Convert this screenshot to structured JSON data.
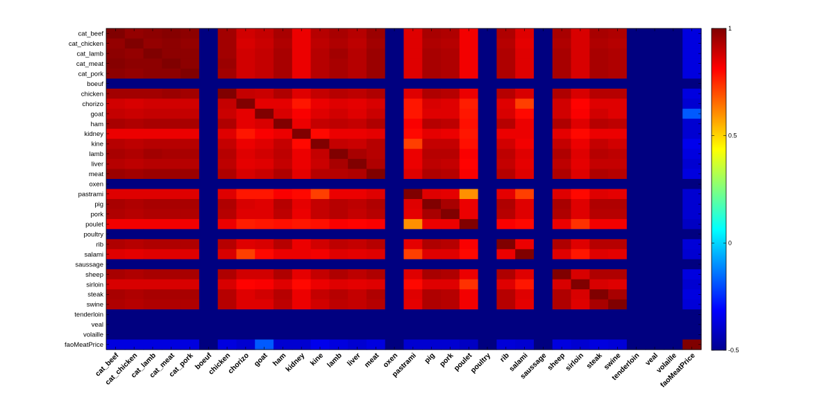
{
  "chart_data": {
    "type": "heatmap",
    "title": "",
    "xlabel": "",
    "ylabel": "",
    "labels": [
      "cat_beef",
      "cat_chicken",
      "cat_lamb",
      "cat_meat",
      "cat_pork",
      "boeuf",
      "chicken",
      "chorizo",
      "goat",
      "ham",
      "kidney",
      "kine",
      "lamb",
      "liver",
      "meat",
      "oxen",
      "pastrami",
      "pig",
      "pork",
      "poulet",
      "poultry",
      "rib",
      "salami",
      "saussage",
      "sheep",
      "sirloin",
      "steak",
      "swine",
      "tenderloin",
      "veal",
      "volaille",
      "faoMeatPrice"
    ],
    "empty_labels": [
      "boeuf",
      "oxen",
      "poultry",
      "saussage",
      "tenderloin",
      "veal",
      "volaille"
    ],
    "empty_value": -0.5,
    "colorbar": {
      "min": -0.5,
      "max": 1,
      "ticks": [
        1,
        0.5,
        0,
        -0.5
      ],
      "colormap": "jet"
    },
    "matrix": [
      [
        1.0,
        0.97,
        0.98,
        0.99,
        0.98,
        -0.5,
        0.95,
        0.88,
        0.9,
        0.94,
        0.84,
        0.92,
        0.94,
        0.92,
        0.96,
        -0.5,
        0.86,
        0.94,
        0.93,
        0.83,
        -0.5,
        0.93,
        0.86,
        -0.5,
        0.94,
        0.87,
        0.94,
        0.93,
        -0.5,
        -0.5,
        -0.5,
        -0.36
      ],
      [
        0.97,
        1.0,
        0.97,
        0.98,
        0.97,
        -0.5,
        0.95,
        0.87,
        0.89,
        0.93,
        0.84,
        0.91,
        0.93,
        0.91,
        0.95,
        -0.5,
        0.86,
        0.93,
        0.92,
        0.83,
        -0.5,
        0.92,
        0.85,
        -0.5,
        0.93,
        0.87,
        0.93,
        0.92,
        -0.5,
        -0.5,
        -0.5,
        -0.36
      ],
      [
        0.98,
        0.97,
        1.0,
        0.98,
        0.98,
        -0.5,
        0.95,
        0.88,
        0.9,
        0.94,
        0.84,
        0.92,
        0.95,
        0.92,
        0.96,
        -0.5,
        0.86,
        0.94,
        0.93,
        0.83,
        -0.5,
        0.93,
        0.86,
        -0.5,
        0.94,
        0.87,
        0.94,
        0.93,
        -0.5,
        -0.5,
        -0.5,
        -0.36
      ],
      [
        0.99,
        0.98,
        0.98,
        1.0,
        0.98,
        -0.5,
        0.96,
        0.88,
        0.9,
        0.94,
        0.84,
        0.92,
        0.94,
        0.92,
        0.96,
        -0.5,
        0.86,
        0.94,
        0.93,
        0.83,
        -0.5,
        0.93,
        0.86,
        -0.5,
        0.94,
        0.87,
        0.94,
        0.93,
        -0.5,
        -0.5,
        -0.5,
        -0.36
      ],
      [
        0.98,
        0.97,
        0.98,
        0.98,
        1.0,
        -0.5,
        0.95,
        0.88,
        0.9,
        0.94,
        0.84,
        0.92,
        0.94,
        0.92,
        0.96,
        -0.5,
        0.86,
        0.94,
        0.93,
        0.83,
        -0.5,
        0.93,
        0.86,
        -0.5,
        0.94,
        0.87,
        0.94,
        0.93,
        -0.5,
        -0.5,
        -0.5,
        -0.36
      ],
      [
        -0.5,
        -0.5,
        -0.5,
        -0.5,
        -0.5,
        -0.5,
        -0.5,
        -0.5,
        -0.5,
        -0.5,
        -0.5,
        -0.5,
        -0.5,
        -0.5,
        -0.5,
        -0.5,
        -0.5,
        -0.5,
        -0.5,
        -0.5,
        -0.5,
        -0.5,
        -0.5,
        -0.5,
        -0.5,
        -0.5,
        -0.5,
        -0.5,
        -0.5,
        -0.5,
        -0.5,
        -0.5
      ],
      [
        0.95,
        0.95,
        0.95,
        0.96,
        0.95,
        -0.5,
        1.0,
        0.9,
        0.89,
        0.93,
        0.86,
        0.9,
        0.92,
        0.91,
        0.93,
        -0.5,
        0.86,
        0.93,
        0.92,
        0.84,
        -0.5,
        0.92,
        0.87,
        -0.5,
        0.93,
        0.87,
        0.92,
        0.92,
        -0.5,
        -0.5,
        -0.5,
        -0.36
      ],
      [
        0.88,
        0.87,
        0.88,
        0.88,
        0.88,
        -0.5,
        0.9,
        1.0,
        0.85,
        0.85,
        0.78,
        0.84,
        0.86,
        0.85,
        0.87,
        -0.5,
        0.78,
        0.87,
        0.86,
        0.77,
        -0.5,
        0.86,
        0.72,
        -0.5,
        0.88,
        0.81,
        0.86,
        0.86,
        -0.5,
        -0.5,
        -0.5,
        -0.38
      ],
      [
        0.9,
        0.89,
        0.9,
        0.9,
        0.9,
        -0.5,
        0.89,
        0.85,
        1.0,
        0.87,
        0.82,
        0.86,
        0.88,
        0.86,
        0.89,
        -0.5,
        0.78,
        0.86,
        0.86,
        0.78,
        -0.5,
        0.87,
        0.8,
        -0.5,
        0.88,
        0.82,
        0.88,
        0.86,
        -0.5,
        -0.5,
        -0.5,
        -0.18
      ],
      [
        0.94,
        0.93,
        0.94,
        0.94,
        0.94,
        -0.5,
        0.93,
        0.85,
        0.87,
        1.0,
        0.84,
        0.9,
        0.91,
        0.9,
        0.93,
        -0.5,
        0.82,
        0.92,
        0.91,
        0.79,
        -0.5,
        0.92,
        0.84,
        -0.5,
        0.93,
        0.86,
        0.92,
        0.91,
        -0.5,
        -0.5,
        -0.5,
        -0.38
      ],
      [
        0.84,
        0.84,
        0.84,
        0.84,
        0.84,
        -0.5,
        0.86,
        0.78,
        0.82,
        0.84,
        1.0,
        0.8,
        0.84,
        0.84,
        0.85,
        -0.5,
        0.8,
        0.85,
        0.84,
        0.78,
        -0.5,
        0.84,
        0.84,
        -0.5,
        0.85,
        0.8,
        0.84,
        0.84,
        -0.5,
        -0.5,
        -0.5,
        -0.38
      ],
      [
        0.92,
        0.91,
        0.92,
        0.92,
        0.92,
        -0.5,
        0.9,
        0.84,
        0.86,
        0.9,
        0.8,
        1.0,
        0.9,
        0.89,
        0.92,
        -0.5,
        0.72,
        0.9,
        0.9,
        0.79,
        -0.5,
        0.88,
        0.83,
        -0.5,
        0.9,
        0.84,
        0.9,
        0.88,
        -0.5,
        -0.5,
        -0.5,
        -0.34
      ],
      [
        0.94,
        0.93,
        0.95,
        0.94,
        0.94,
        -0.5,
        0.92,
        0.86,
        0.88,
        0.91,
        0.84,
        0.9,
        1.0,
        0.94,
        0.92,
        -0.5,
        0.84,
        0.92,
        0.92,
        0.82,
        -0.5,
        0.91,
        0.86,
        -0.5,
        0.93,
        0.86,
        0.92,
        0.91,
        -0.5,
        -0.5,
        -0.5,
        -0.36
      ],
      [
        0.92,
        0.91,
        0.92,
        0.92,
        0.92,
        -0.5,
        0.91,
        0.85,
        0.86,
        0.9,
        0.84,
        0.89,
        0.94,
        1.0,
        0.93,
        -0.5,
        0.84,
        0.91,
        0.9,
        0.81,
        -0.5,
        0.9,
        0.85,
        -0.5,
        0.91,
        0.85,
        0.9,
        0.9,
        -0.5,
        -0.5,
        -0.5,
        -0.38
      ],
      [
        0.96,
        0.95,
        0.96,
        0.96,
        0.96,
        -0.5,
        0.93,
        0.87,
        0.89,
        0.93,
        0.85,
        0.92,
        0.92,
        0.93,
        1.0,
        -0.5,
        0.86,
        0.93,
        0.92,
        0.82,
        -0.5,
        0.92,
        0.86,
        -0.5,
        0.93,
        0.86,
        0.93,
        0.92,
        -0.5,
        -0.5,
        -0.5,
        -0.36
      ],
      [
        -0.5,
        -0.5,
        -0.5,
        -0.5,
        -0.5,
        -0.5,
        -0.5,
        -0.5,
        -0.5,
        -0.5,
        -0.5,
        -0.5,
        -0.5,
        -0.5,
        -0.5,
        -0.5,
        -0.5,
        -0.5,
        -0.5,
        -0.5,
        -0.5,
        -0.5,
        -0.5,
        -0.5,
        -0.5,
        -0.5,
        -0.5,
        -0.5,
        -0.5,
        -0.5,
        -0.5,
        -0.5
      ],
      [
        0.86,
        0.86,
        0.86,
        0.86,
        0.86,
        -0.5,
        0.86,
        0.78,
        0.78,
        0.82,
        0.8,
        0.72,
        0.84,
        0.84,
        0.86,
        -0.5,
        1.0,
        0.86,
        0.85,
        0.6,
        -0.5,
        0.85,
        0.72,
        -0.5,
        0.86,
        0.8,
        0.86,
        0.85,
        -0.5,
        -0.5,
        -0.5,
        -0.38
      ],
      [
        0.94,
        0.93,
        0.94,
        0.94,
        0.94,
        -0.5,
        0.93,
        0.87,
        0.86,
        0.92,
        0.85,
        0.9,
        0.92,
        0.91,
        0.93,
        -0.5,
        0.86,
        1.0,
        0.94,
        0.84,
        -0.5,
        0.93,
        0.86,
        -0.5,
        0.94,
        0.86,
        0.93,
        0.93,
        -0.5,
        -0.5,
        -0.5,
        -0.38
      ],
      [
        0.93,
        0.92,
        0.93,
        0.93,
        0.93,
        -0.5,
        0.92,
        0.86,
        0.86,
        0.91,
        0.84,
        0.9,
        0.92,
        0.9,
        0.92,
        -0.5,
        0.85,
        0.94,
        1.0,
        0.84,
        -0.5,
        0.92,
        0.86,
        -0.5,
        0.93,
        0.86,
        0.92,
        0.92,
        -0.5,
        -0.5,
        -0.5,
        -0.38
      ],
      [
        0.83,
        0.83,
        0.83,
        0.83,
        0.83,
        -0.5,
        0.84,
        0.77,
        0.78,
        0.79,
        0.78,
        0.79,
        0.82,
        0.81,
        0.82,
        -0.5,
        0.6,
        0.84,
        0.84,
        1.0,
        -0.5,
        0.82,
        0.8,
        -0.5,
        0.84,
        0.74,
        0.83,
        0.83,
        -0.5,
        -0.5,
        -0.5,
        -0.4
      ],
      [
        -0.5,
        -0.5,
        -0.5,
        -0.5,
        -0.5,
        -0.5,
        -0.5,
        -0.5,
        -0.5,
        -0.5,
        -0.5,
        -0.5,
        -0.5,
        -0.5,
        -0.5,
        -0.5,
        -0.5,
        -0.5,
        -0.5,
        -0.5,
        -0.5,
        -0.5,
        -0.5,
        -0.5,
        -0.5,
        -0.5,
        -0.5,
        -0.5,
        -0.5,
        -0.5,
        -0.5,
        -0.5
      ],
      [
        0.93,
        0.92,
        0.93,
        0.93,
        0.93,
        -0.5,
        0.92,
        0.86,
        0.87,
        0.92,
        0.84,
        0.88,
        0.91,
        0.9,
        0.92,
        -0.5,
        0.85,
        0.93,
        0.92,
        0.82,
        -0.5,
        1.0,
        0.84,
        -0.5,
        0.93,
        0.86,
        0.92,
        0.92,
        -0.5,
        -0.5,
        -0.5,
        -0.37
      ],
      [
        0.86,
        0.85,
        0.86,
        0.86,
        0.86,
        -0.5,
        0.87,
        0.72,
        0.8,
        0.84,
        0.84,
        0.83,
        0.86,
        0.85,
        0.86,
        -0.5,
        0.72,
        0.86,
        0.86,
        0.8,
        -0.5,
        0.84,
        1.0,
        -0.5,
        0.86,
        0.78,
        0.86,
        0.85,
        -0.5,
        -0.5,
        -0.5,
        -0.38
      ],
      [
        -0.5,
        -0.5,
        -0.5,
        -0.5,
        -0.5,
        -0.5,
        -0.5,
        -0.5,
        -0.5,
        -0.5,
        -0.5,
        -0.5,
        -0.5,
        -0.5,
        -0.5,
        -0.5,
        -0.5,
        -0.5,
        -0.5,
        -0.5,
        -0.5,
        -0.5,
        -0.5,
        -0.5,
        -0.5,
        -0.5,
        -0.5,
        -0.5,
        -0.5,
        -0.5,
        -0.5,
        -0.5
      ],
      [
        0.94,
        0.93,
        0.94,
        0.94,
        0.94,
        -0.5,
        0.93,
        0.88,
        0.88,
        0.93,
        0.85,
        0.9,
        0.93,
        0.91,
        0.93,
        -0.5,
        0.86,
        0.94,
        0.93,
        0.84,
        -0.5,
        0.93,
        0.86,
        -0.5,
        1.0,
        0.87,
        0.93,
        0.93,
        -0.5,
        -0.5,
        -0.5,
        -0.36
      ],
      [
        0.87,
        0.87,
        0.87,
        0.87,
        0.87,
        -0.5,
        0.87,
        0.81,
        0.82,
        0.86,
        0.8,
        0.84,
        0.86,
        0.85,
        0.86,
        -0.5,
        0.8,
        0.86,
        0.86,
        0.74,
        -0.5,
        0.86,
        0.78,
        -0.5,
        0.87,
        1.0,
        0.87,
        0.86,
        -0.5,
        -0.5,
        -0.5,
        -0.38
      ],
      [
        0.94,
        0.93,
        0.94,
        0.94,
        0.94,
        -0.5,
        0.92,
        0.86,
        0.88,
        0.92,
        0.84,
        0.9,
        0.92,
        0.9,
        0.93,
        -0.5,
        0.86,
        0.93,
        0.92,
        0.83,
        -0.5,
        0.92,
        0.86,
        -0.5,
        0.93,
        0.87,
        1.0,
        0.94,
        -0.5,
        -0.5,
        -0.5,
        -0.36
      ],
      [
        0.93,
        0.92,
        0.93,
        0.93,
        0.93,
        -0.5,
        0.92,
        0.86,
        0.86,
        0.91,
        0.84,
        0.88,
        0.91,
        0.9,
        0.92,
        -0.5,
        0.85,
        0.93,
        0.92,
        0.83,
        -0.5,
        0.92,
        0.85,
        -0.5,
        0.93,
        0.86,
        0.94,
        1.0,
        -0.5,
        -0.5,
        -0.5,
        -0.37
      ],
      [
        -0.5,
        -0.5,
        -0.5,
        -0.5,
        -0.5,
        -0.5,
        -0.5,
        -0.5,
        -0.5,
        -0.5,
        -0.5,
        -0.5,
        -0.5,
        -0.5,
        -0.5,
        -0.5,
        -0.5,
        -0.5,
        -0.5,
        -0.5,
        -0.5,
        -0.5,
        -0.5,
        -0.5,
        -0.5,
        -0.5,
        -0.5,
        -0.5,
        -0.5,
        -0.5,
        -0.5,
        -0.5
      ],
      [
        -0.5,
        -0.5,
        -0.5,
        -0.5,
        -0.5,
        -0.5,
        -0.5,
        -0.5,
        -0.5,
        -0.5,
        -0.5,
        -0.5,
        -0.5,
        -0.5,
        -0.5,
        -0.5,
        -0.5,
        -0.5,
        -0.5,
        -0.5,
        -0.5,
        -0.5,
        -0.5,
        -0.5,
        -0.5,
        -0.5,
        -0.5,
        -0.5,
        -0.5,
        -0.5,
        -0.5,
        -0.5
      ],
      [
        -0.5,
        -0.5,
        -0.5,
        -0.5,
        -0.5,
        -0.5,
        -0.5,
        -0.5,
        -0.5,
        -0.5,
        -0.5,
        -0.5,
        -0.5,
        -0.5,
        -0.5,
        -0.5,
        -0.5,
        -0.5,
        -0.5,
        -0.5,
        -0.5,
        -0.5,
        -0.5,
        -0.5,
        -0.5,
        -0.5,
        -0.5,
        -0.5,
        -0.5,
        -0.5,
        -0.5,
        -0.5
      ],
      [
        -0.36,
        -0.36,
        -0.36,
        -0.36,
        -0.36,
        -0.5,
        -0.36,
        -0.38,
        -0.18,
        -0.38,
        -0.38,
        -0.34,
        -0.36,
        -0.38,
        -0.36,
        -0.5,
        -0.38,
        -0.38,
        -0.38,
        -0.4,
        -0.5,
        -0.37,
        -0.38,
        -0.5,
        -0.36,
        -0.38,
        -0.36,
        -0.37,
        -0.5,
        -0.5,
        -0.5,
        1.0
      ]
    ]
  }
}
